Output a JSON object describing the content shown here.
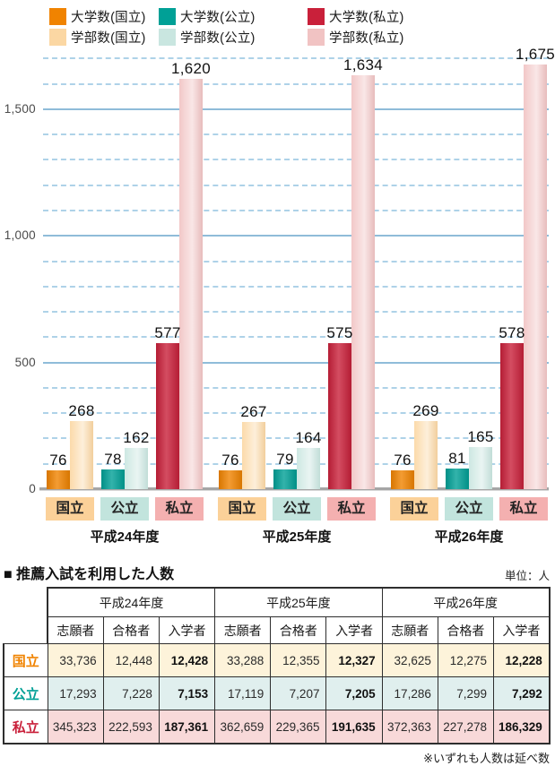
{
  "chart_data": {
    "type": "bar",
    "title": "",
    "categories": [
      "平成24年度",
      "平成25年度",
      "平成26年度"
    ],
    "groups": [
      {
        "label": "国立",
        "box_color": "#fbd199"
      },
      {
        "label": "公立",
        "box_color": "#c2e4dd"
      },
      {
        "label": "私立",
        "box_color": "#f4b0b0"
      }
    ],
    "series": [
      {
        "name": "大学数(国立)",
        "color": "#f08300",
        "shade": "dark",
        "values": [
          76,
          76,
          76
        ]
      },
      {
        "name": "学部数(国立)",
        "color": "#fbd7a3",
        "shade": "light",
        "values": [
          268,
          267,
          269
        ]
      },
      {
        "name": "大学数(公立)",
        "color": "#00a096",
        "shade": "dark",
        "values": [
          78,
          79,
          81
        ]
      },
      {
        "name": "学部数(公立)",
        "color": "#c9e6e0",
        "shade": "light",
        "values": [
          162,
          164,
          165
        ]
      },
      {
        "name": "大学数(私立)",
        "color": "#c9203a",
        "shade": "dark",
        "values": [
          577,
          575,
          578
        ]
      },
      {
        "name": "学部数(私立)",
        "color": "#f1c3c3",
        "shade": "light",
        "values": [
          1620,
          1634,
          1675
        ]
      }
    ],
    "ylim": [
      0,
      1700
    ],
    "yticks": [
      0,
      500,
      1000,
      1500
    ],
    "gridline_step": 100,
    "grid": "dashed every 100, solid every 500",
    "legend_position": "top"
  },
  "table": {
    "title": "■ 推薦入試を利用した人数",
    "unit": "単位：人",
    "year_headers": [
      "平成24年度",
      "平成25年度",
      "平成26年度"
    ],
    "sub_headers": [
      "志願者",
      "合格者",
      "入学者"
    ],
    "rows": [
      {
        "label": "国立",
        "label_color": "#f08300",
        "bg": "#fdf3da",
        "values": [
          "33,736",
          "12,448",
          "12,428",
          "33,288",
          "12,355",
          "12,327",
          "32,625",
          "12,275",
          "12,228"
        ]
      },
      {
        "label": "公立",
        "label_color": "#00a096",
        "bg": "#e0efee",
        "values": [
          "17,293",
          "7,228",
          "7,153",
          "17,119",
          "7,207",
          "7,205",
          "17,286",
          "7,299",
          "7,292"
        ]
      },
      {
        "label": "私立",
        "label_color": "#c9203a",
        "bg": "#f8d9d9",
        "values": [
          "345,323",
          "222,593",
          "187,361",
          "362,659",
          "229,365",
          "191,635",
          "372,363",
          "227,278",
          "186,329"
        ]
      }
    ],
    "footnote": "※いずれも人数は延べ数"
  }
}
